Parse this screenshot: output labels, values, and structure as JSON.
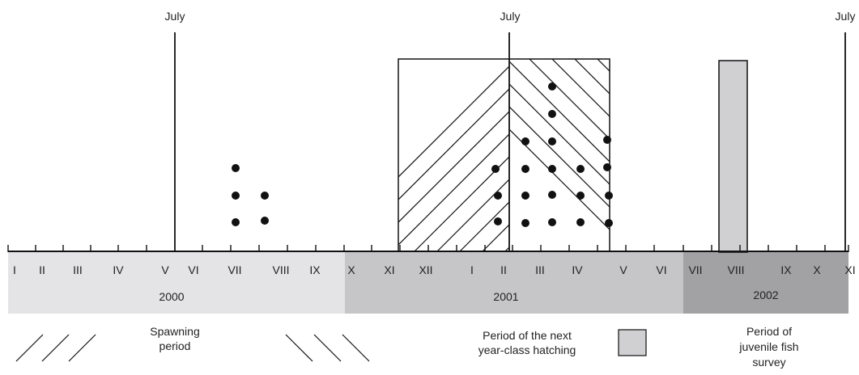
{
  "july_label": "July",
  "months_row": [
    "I",
    "II",
    "III",
    "IV",
    "V",
    "VI",
    "VII",
    "VIII",
    "IX",
    "X",
    "XI",
    "XII",
    "I",
    "II",
    "III",
    "IV",
    "V",
    "VI",
    "VII",
    "VIII",
    "IX",
    "X",
    "XI"
  ],
  "years": [
    {
      "label": "2000",
      "color": "#e4e4e6"
    },
    {
      "label": "2001",
      "color": "#c6c6c8"
    },
    {
      "label": "2002",
      "color": "#a2a2a4"
    }
  ],
  "legend": {
    "spawning_l1": "Spawning",
    "spawning_l2": "period",
    "hatch_l1": "Period of the next",
    "hatch_l2": "year-class hatching",
    "survey_l1": "Period of",
    "survey_l2": "juvenile fish",
    "survey_l3": "survey"
  },
  "colors": {
    "survey_fill": "#d0d0d2",
    "line": "#111111"
  }
}
